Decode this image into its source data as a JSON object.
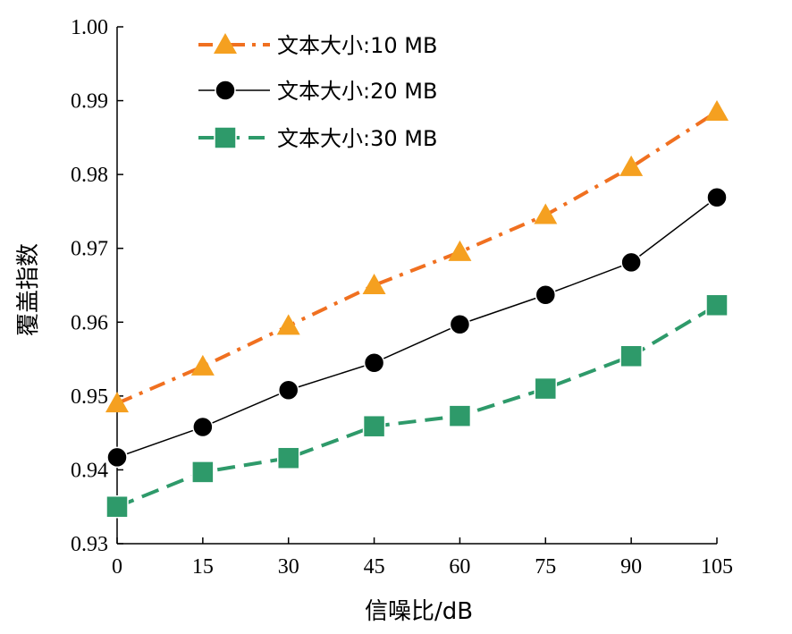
{
  "chart_data": {
    "type": "line",
    "xlabel": "信噪比/dB",
    "ylabel": "覆盖指数",
    "x": [
      0,
      15,
      30,
      45,
      60,
      75,
      90,
      105
    ],
    "xticks": [
      "0",
      "15",
      "30",
      "45",
      "60",
      "75",
      "90",
      "105"
    ],
    "ylim": [
      0.93,
      1.0
    ],
    "yticks": [
      "0.93",
      "0.94",
      "0.95",
      "0.96",
      "0.97",
      "0.98",
      "0.99",
      "1.00"
    ],
    "grid": false,
    "legend_position": "top-left",
    "series": [
      {
        "name": "文本大小:10 MB",
        "values": [
          0.949,
          0.954,
          0.9595,
          0.965,
          0.9695,
          0.9745,
          0.981,
          0.9885
        ],
        "color": "#F07020",
        "marker_color": "#F5A020",
        "marker": "triangle",
        "line_style": "dash-dot"
      },
      {
        "name": "文本大小:20 MB",
        "values": [
          0.9417,
          0.9458,
          0.9508,
          0.9545,
          0.9597,
          0.9637,
          0.9681,
          0.9769
        ],
        "color": "#000000",
        "marker_color": "#000000",
        "marker": "circle",
        "line_style": "solid"
      },
      {
        "name": "文本大小:30 MB",
        "values": [
          0.935,
          0.9397,
          0.9416,
          0.9459,
          0.9473,
          0.951,
          0.9554,
          0.9623
        ],
        "color": "#2E9A6A",
        "marker_color": "#2E9A6A",
        "marker": "square",
        "line_style": "dashed"
      }
    ]
  }
}
